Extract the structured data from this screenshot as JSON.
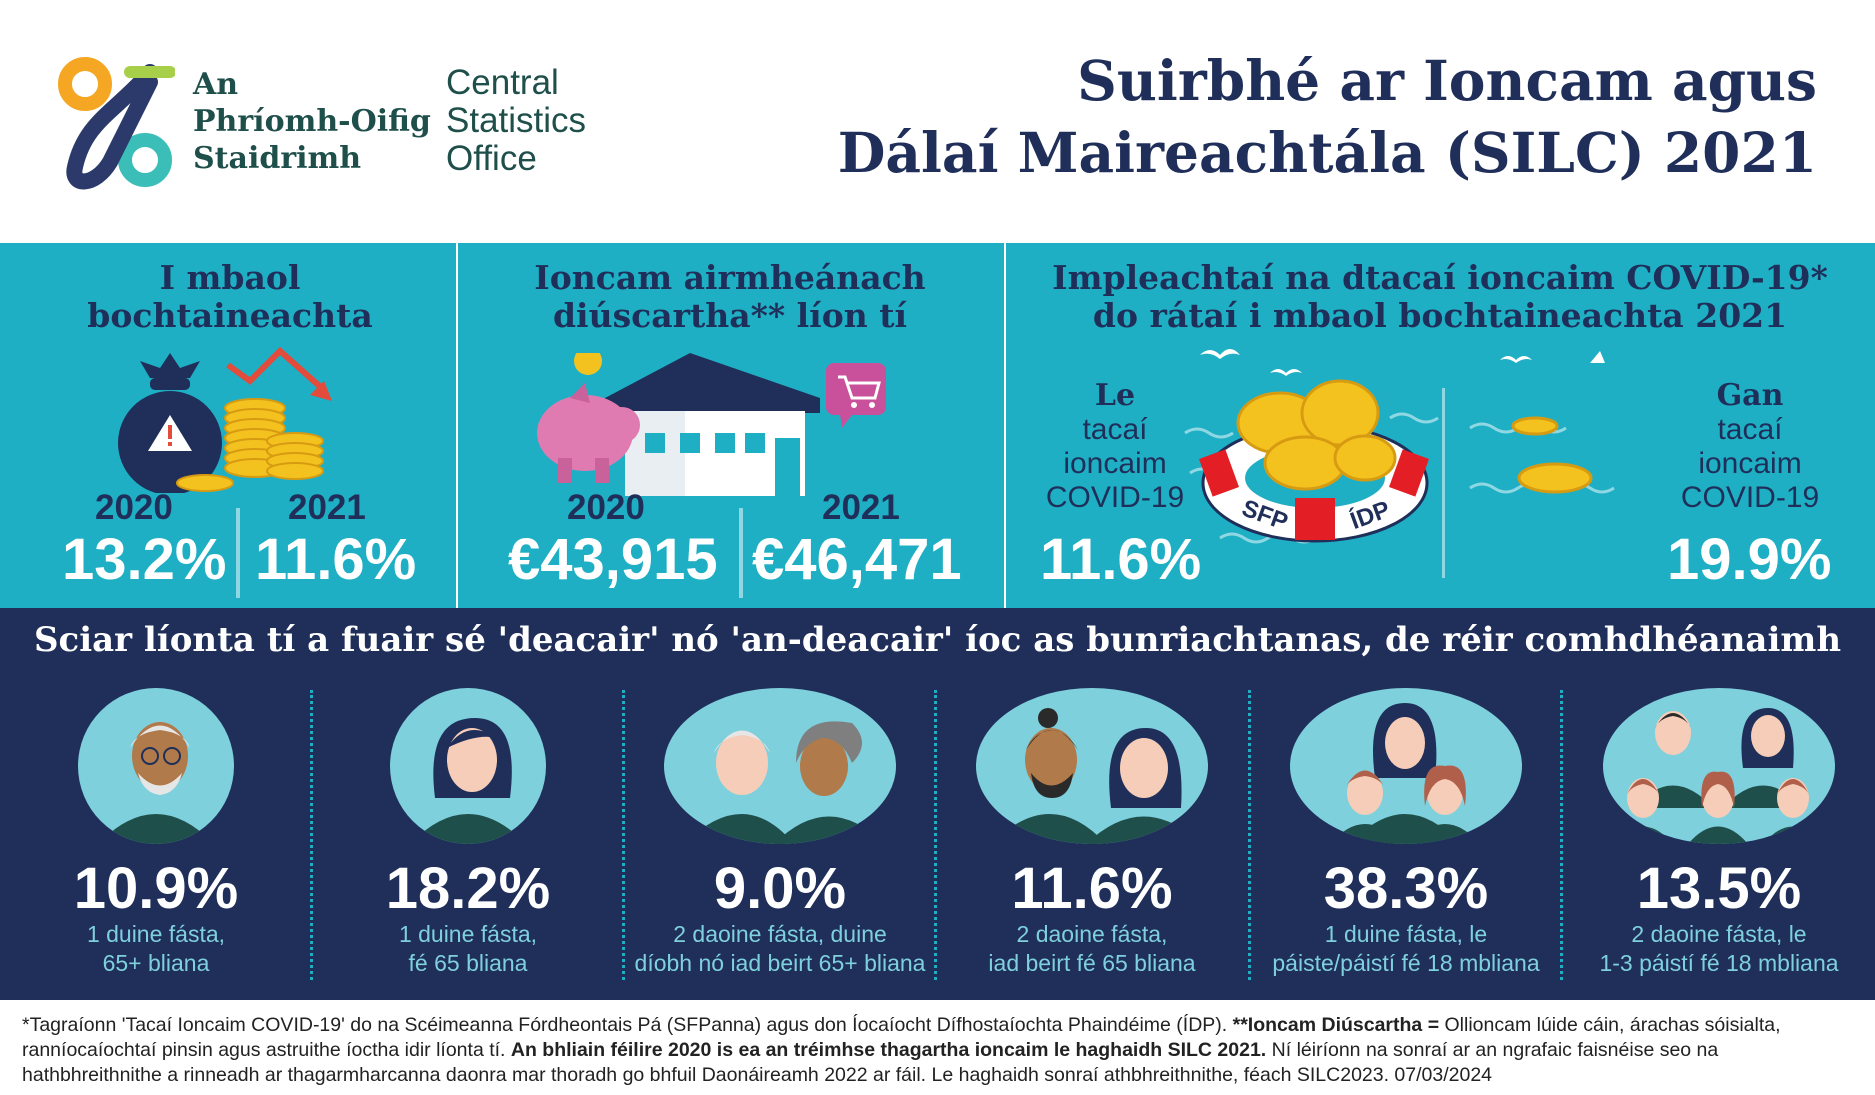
{
  "org": {
    "name_ga": [
      "An",
      "Phríomh-Oifig",
      "Staidrimh"
    ],
    "name_en": [
      "Central",
      "Statistics",
      "Office"
    ]
  },
  "title": [
    "Suirbhé ar Ioncam agus",
    "Dálaí Maireachtála (SILC) 2021"
  ],
  "poverty": {
    "title": [
      "I mbaol",
      "bochtaineachta"
    ],
    "year1": "2020",
    "value1": "13.2%",
    "year2": "2021",
    "value2": "11.6%"
  },
  "income": {
    "title": [
      "Ioncam airmheánach",
      "diúscartha** líon tí"
    ],
    "year1": "2020",
    "value1": "€43,915",
    "year2": "2021",
    "value2": "€46,471"
  },
  "covid": {
    "title": [
      "Impleachtaí na dtacaí ioncaim COVID-19*",
      "do rátaí i mbaol bochtaineachta 2021"
    ],
    "with_label": [
      "Le",
      "tacaí",
      "ioncaim",
      "COVID-19"
    ],
    "with_value": "11.6%",
    "without_label": [
      "Gan",
      "tacaí",
      "ioncaim",
      "COVID-19"
    ],
    "without_value": "19.9%",
    "ring_left": "SFP",
    "ring_right": "ÍDP"
  },
  "households": {
    "title": "Sciar líonta tí a fuair sé 'deacair' nó 'an-deacair' íoc as bunriachtanas, de réir comhdhéanaimh",
    "items": [
      {
        "value": "10.9%",
        "desc": [
          "1 duine fásta,",
          "65+ bliana"
        ]
      },
      {
        "value": "18.2%",
        "desc": [
          "1 duine fásta,",
          "fé 65 bliana"
        ]
      },
      {
        "value": "9.0%",
        "desc": [
          "2 daoine fásta, duine",
          "díobh nó iad beirt 65+ bliana"
        ]
      },
      {
        "value": "11.6%",
        "desc": [
          "2 daoine fásta,",
          "iad beirt fé 65 bliana"
        ]
      },
      {
        "value": "38.3%",
        "desc": [
          "1 duine fásta, le",
          "páiste/páistí fé 18 mbliana"
        ]
      },
      {
        "value": "13.5%",
        "desc": [
          "2 daoine fásta, le",
          "1-3 páistí fé 18 mbliana"
        ]
      }
    ]
  },
  "footnote": {
    "p1": "*Tagraíonn 'Tacaí Ioncaim COVID-19' do na Scéimeanna Fórdheontais Pá (SFPanna) agus don Íocaíocht Dífhostaíochta Phaindéime (ÍDP).",
    "p2": "**Ioncam Diúscartha =",
    "p3": "Ollioncam lúide cáin, árachas sóisialta, ranníocaíochtaí pinsin agus astruithe íoctha idir líonta tí.",
    "p4": "An bhliain féilire 2020 is ea an tréimhse thagartha ioncaim le haghaidh SILC 2021.",
    "p5": "Ní léiríonn na sonraí ar an ngrafaic faisnéise seo na hathbhreithnithe a rinneadh ar thagarmharcanna daonra mar thoradh go bhfuil Daonáireamh 2022 ar fáil. Le haghaidh sonraí athbhreithnithe, féach SILC2023. 07/03/2024"
  },
  "colors": {
    "navy": "#1f2f5a",
    "teal": "#1fafc4",
    "light_teal": "#7fd0dd",
    "gold": "#f4c21f",
    "orange": "#f5a623",
    "red": "#e34b3b",
    "pink": "#e07bb1"
  },
  "icons": [
    "money-bag-icon",
    "coins-icon",
    "down-trend-arrow-icon",
    "piggy-bank-icon",
    "house-icon",
    "shopping-cart-icon",
    "lifebuoy-icon",
    "seagull-icon",
    "person-icon"
  ]
}
